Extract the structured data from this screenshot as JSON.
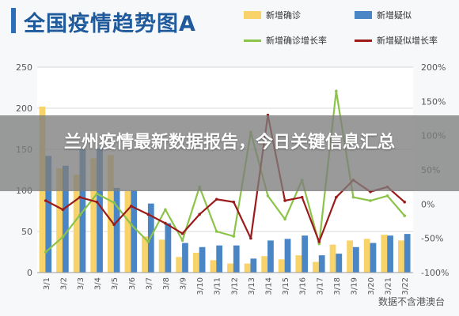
{
  "header": {
    "title": "全国疫情趋势图A"
  },
  "legend": {
    "items": [
      {
        "label": "新增确诊",
        "kind": "box",
        "color": "#f7d369"
      },
      {
        "label": "新增疑似",
        "kind": "box",
        "color": "#4a86c5"
      },
      {
        "label": "新增确诊增长率",
        "kind": "line",
        "color": "#8cc34a"
      },
      {
        "label": "新增疑似增长率",
        "kind": "line",
        "color": "#9b1b1b"
      }
    ]
  },
  "banner": {
    "text": "兰州疫情最新数据报告，今日关键信息汇总"
  },
  "source": {
    "text": "数据不含港澳台"
  },
  "chart_data": {
    "type": "bar",
    "categories": [
      "3/1",
      "3/2",
      "3/3",
      "3/4",
      "3/5",
      "3/6",
      "3/7",
      "3/8",
      "3/9",
      "3/10",
      "3/11",
      "3/12",
      "3/13",
      "3/14",
      "3/15",
      "3/16",
      "3/17",
      "3/18",
      "3/19",
      "3/20",
      "3/21",
      "3/22"
    ],
    "series": [
      {
        "name": "新增确诊",
        "axis": "left",
        "kind": "bar",
        "color": "#f7d369",
        "values": [
          202,
          127,
          119,
          139,
          143,
          99,
          44,
          40,
          19,
          24,
          15,
          11,
          11,
          20,
          16,
          21,
          13,
          34,
          39,
          41,
          46,
          39
        ]
      },
      {
        "name": "新增疑似",
        "axis": "left",
        "kind": "bar",
        "color": "#4a86c5",
        "values": [
          142,
          130,
          150,
          152,
          103,
          100,
          84,
          60,
          36,
          31,
          33,
          33,
          17,
          39,
          41,
          45,
          21,
          23,
          31,
          36,
          45,
          47
        ]
      },
      {
        "name": "新增确诊增长率",
        "axis": "right",
        "kind": "line",
        "color": "#8cc34a",
        "values": [
          -70,
          -48,
          -16,
          15,
          2,
          -30,
          -55,
          -8,
          -53,
          25,
          -40,
          -47,
          105,
          12,
          -22,
          35,
          -58,
          165,
          10,
          5,
          12,
          -17
        ]
      },
      {
        "name": "新增疑似增长率",
        "axis": "right",
        "kind": "line",
        "color": "#9b1b1b",
        "values": [
          5,
          -8,
          10,
          3,
          -30,
          -3,
          -15,
          -28,
          -43,
          -15,
          7,
          3,
          -50,
          130,
          5,
          10,
          -55,
          10,
          35,
          18,
          25,
          3
        ]
      }
    ],
    "ylim_left": [
      0,
      250
    ],
    "yticks_left": [
      0,
      50,
      100,
      150,
      200,
      250
    ],
    "ylim_right": [
      -100,
      200
    ],
    "yticks_right": [
      "-100%",
      "-50%",
      "0%",
      "50%",
      "100%",
      "150%",
      "200%"
    ],
    "grid": true,
    "legend_position": "top-right"
  }
}
